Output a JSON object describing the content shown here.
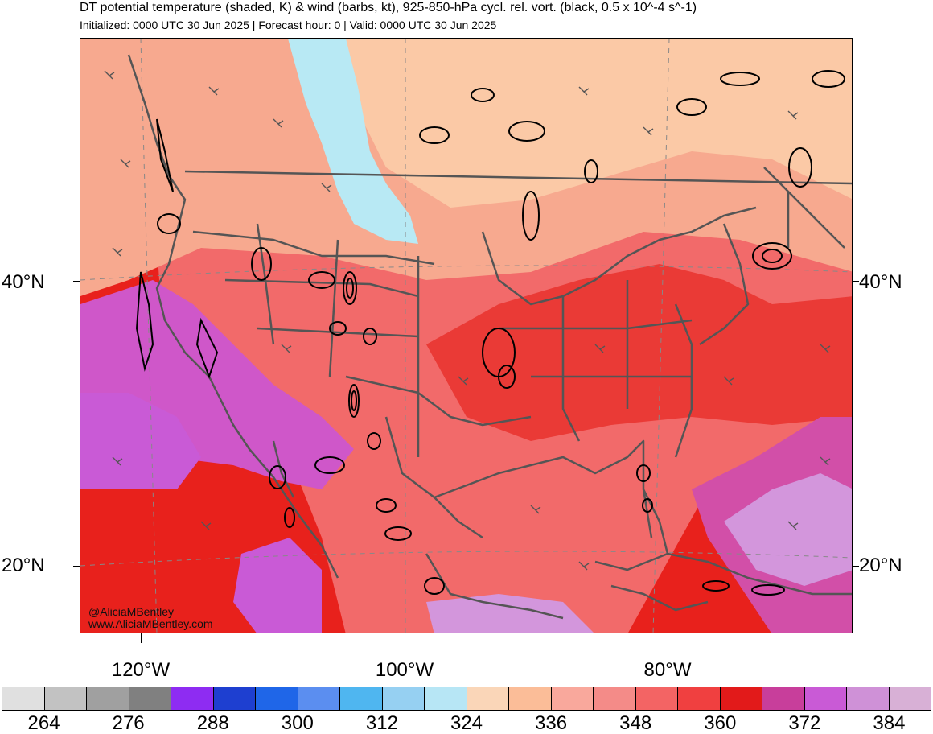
{
  "header": {
    "title": "DT potential temperature (shaded, K) & wind (barbs, kt), 925-850-hPa cycl. rel. vort. (black, 0.5 x 10^-4 s^-1)",
    "subtitle": "Initialized: 0000 UTC 30 Jun 2025 | Forecast hour: 0 | Valid: 0000 UTC 30 Jun 2025"
  },
  "map": {
    "lat_labels": {
      "n40_left": "40°N",
      "n40_right": "40°N",
      "n20_left": "20°N",
      "n20_right": "20°N"
    },
    "lon_labels": {
      "w120": "120°W",
      "w100": "100°W",
      "w80": "80°W"
    },
    "credit": {
      "handle": "@AliciaMBentley",
      "website": "www.AliciaMBentley.com"
    },
    "colors": {
      "ocean_hot": "#e8211c",
      "land_warm": "#f26a6a",
      "north_cool": "#f7a98f",
      "north_peach": "#fbc9a6",
      "cold_tongue": "#b8e9f4",
      "desert_purple": "#cf57c9",
      "light_purple": "#d396dc",
      "boundary": "#555555",
      "contour": "#000000"
    }
  },
  "colorbar": {
    "colors": [
      "#e0e0e0",
      "#c2c2c2",
      "#a0a0a0",
      "#808080",
      "#8e2cf2",
      "#1e3fd0",
      "#1f66e8",
      "#5b8ef0",
      "#4fb6f0",
      "#96d0f2",
      "#b7e6f5",
      "#fad6b8",
      "#fbbd98",
      "#f9a89c",
      "#f48b88",
      "#f36464",
      "#f04040",
      "#e21a1a",
      "#c83e9b",
      "#c95ad6",
      "#cf91d7",
      "#d8b0d6"
    ],
    "labels": [
      "264",
      "276",
      "288",
      "300",
      "312",
      "324",
      "336",
      "348",
      "360",
      "372",
      "384"
    ]
  }
}
